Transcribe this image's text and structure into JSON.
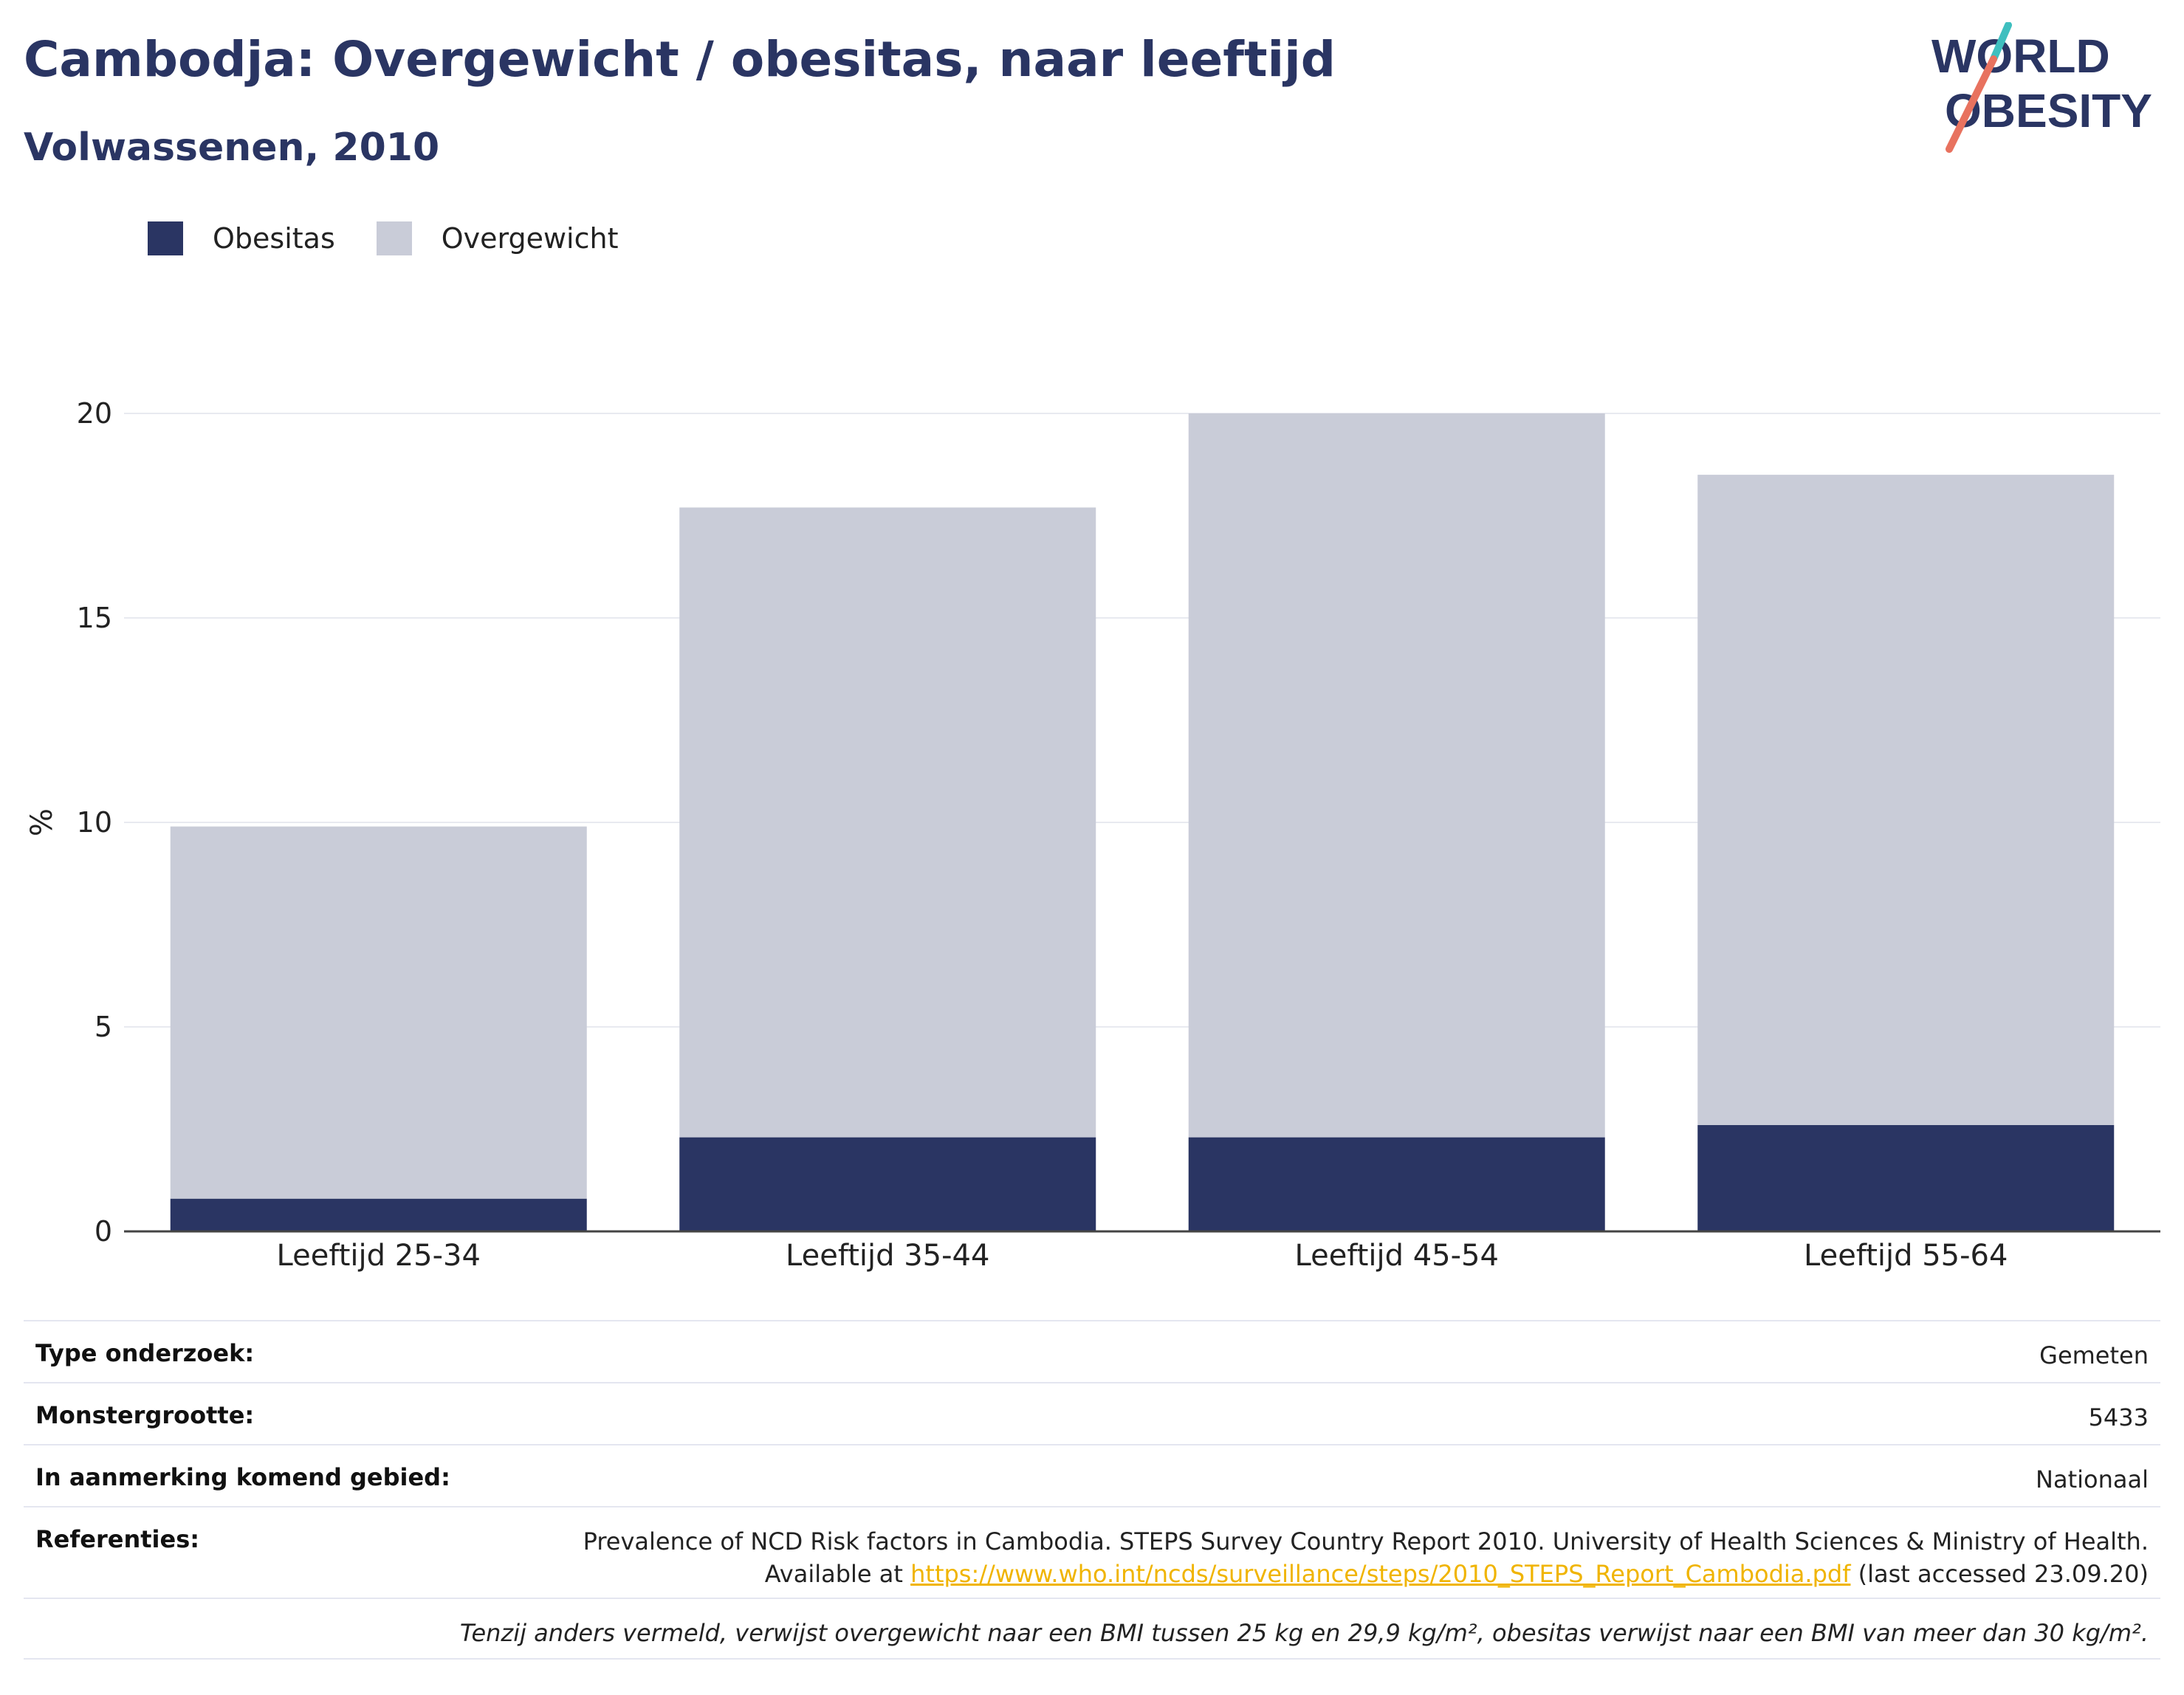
{
  "header": {
    "title": "Cambodja: Overgewicht / obesitas, naar leeftijd",
    "subtitle": "Volwassenen, 2010"
  },
  "logo": {
    "line1": "WORLD",
    "line2": "OBESITY"
  },
  "colors": {
    "obesitas": "#2a3563",
    "overgewicht": "#c9ccd8",
    "link": "#f0b400"
  },
  "legend": {
    "items": [
      "Obesitas",
      "Overgewicht"
    ],
    "placement": "top-left"
  },
  "chart_data": {
    "type": "bar",
    "stacked": true,
    "categories": [
      "Leeftijd 25-34",
      "Leeftijd 35-44",
      "Leeftijd 45-54",
      "Leeftijd 55-64"
    ],
    "series": [
      {
        "name": "Obesitas",
        "values": [
          0.8,
          2.3,
          2.3,
          2.6
        ]
      },
      {
        "name": "Overgewicht",
        "values": [
          9.1,
          15.4,
          17.7,
          15.9
        ]
      }
    ],
    "totals": [
      9.9,
      17.7,
      20.0,
      18.5
    ],
    "ylabel": "%",
    "xlabel": "",
    "ylim": [
      0,
      20
    ],
    "yticks": [
      0,
      5,
      10,
      15,
      20
    ],
    "grid": true
  },
  "info": {
    "type_label": "Type onderzoek:",
    "type_value": "Gemeten",
    "sample_label": "Monstergrootte:",
    "sample_value": "5433",
    "area_label": "In aanmerking komend gebied:",
    "area_value": "Nationaal",
    "ref_label": "Referenties:",
    "ref_line1": "Prevalence of NCD Risk factors in Cambodia. STEPS Survey Country Report 2010. University of Health Sciences & Ministry of Health.",
    "ref_prefix": "Available at ",
    "ref_link": "https://www.who.int/ncds/surveillance/steps/2010_STEPS_Report_Cambodia.pdf",
    "ref_suffix": " (last accessed 23.09.20)",
    "note": "Tenzij anders vermeld, verwijst overgewicht naar een BMI tussen 25 kg en 29,9 kg/m², obesitas verwijst naar een BMI van meer dan 30 kg/m²."
  }
}
